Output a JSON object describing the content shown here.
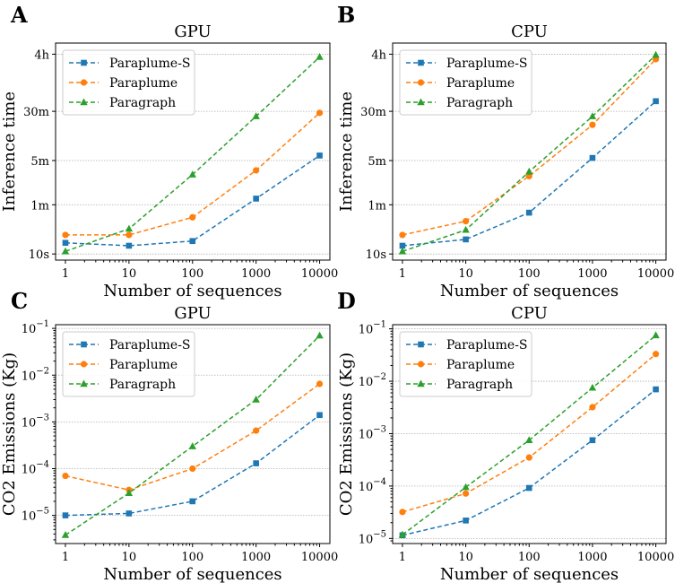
{
  "chart_data": [
    {
      "id": "A",
      "panel_label": "A",
      "type": "line",
      "title": "GPU",
      "xlabel": "Number of sequences",
      "ylabel": "Inference time",
      "xscale": "log",
      "yscale": "log",
      "x": [
        1,
        10,
        100,
        1000,
        10000
      ],
      "xticks": [
        {
          "value": 1,
          "label": "1"
        },
        {
          "value": 10,
          "label": "10"
        },
        {
          "value": 100,
          "label": "100"
        },
        {
          "value": 1000,
          "label": "1000"
        },
        {
          "value": 10000,
          "label": "10000"
        }
      ],
      "ylim": [
        8,
        21600
      ],
      "yticks": [
        {
          "value": 10,
          "label": "10s"
        },
        {
          "value": 60,
          "label": "1m"
        },
        {
          "value": 300,
          "label": "5m"
        },
        {
          "value": 1800,
          "label": "30m"
        },
        {
          "value": 14400,
          "label": "4h"
        }
      ],
      "grid": "horizontal",
      "legend_position": "top-left",
      "series": [
        {
          "name": "Paraplume-S",
          "color": "#1f77b4",
          "marker": "square",
          "values": [
            15,
            13.5,
            16,
            75,
            360
          ]
        },
        {
          "name": "Paraplume",
          "color": "#ff7f0e",
          "marker": "circle",
          "values": [
            20,
            20,
            38,
            210,
            1700
          ]
        },
        {
          "name": "Paragraph",
          "color": "#2ca02c",
          "marker": "triangle",
          "values": [
            11,
            25,
            180,
            1500,
            13000
          ]
        }
      ]
    },
    {
      "id": "B",
      "panel_label": "B",
      "type": "line",
      "title": "CPU",
      "xlabel": "Number of sequences",
      "ylabel": "Inference time",
      "xscale": "log",
      "yscale": "log",
      "x": [
        1,
        10,
        100,
        1000,
        10000
      ],
      "xticks": [
        {
          "value": 1,
          "label": "1"
        },
        {
          "value": 10,
          "label": "10"
        },
        {
          "value": 100,
          "label": "100"
        },
        {
          "value": 1000,
          "label": "1000"
        },
        {
          "value": 10000,
          "label": "10000"
        }
      ],
      "ylim": [
        8,
        21600
      ],
      "yticks": [
        {
          "value": 10,
          "label": "10s"
        },
        {
          "value": 60,
          "label": "1m"
        },
        {
          "value": 300,
          "label": "5m"
        },
        {
          "value": 1800,
          "label": "30m"
        },
        {
          "value": 14400,
          "label": "4h"
        }
      ],
      "grid": "horizontal",
      "legend_position": "top-left",
      "series": [
        {
          "name": "Paraplume-S",
          "color": "#1f77b4",
          "marker": "square",
          "values": [
            13.5,
            17,
            45,
            330,
            2600
          ]
        },
        {
          "name": "Paraplume",
          "color": "#ff7f0e",
          "marker": "circle",
          "values": [
            20,
            33,
            170,
            1100,
            12000
          ]
        },
        {
          "name": "Paragraph",
          "color": "#2ca02c",
          "marker": "triangle",
          "values": [
            11,
            24,
            200,
            1500,
            14000
          ]
        }
      ]
    },
    {
      "id": "C",
      "panel_label": "C",
      "type": "line",
      "title": "GPU",
      "xlabel": "Number of sequences",
      "ylabel": "CO2 Emissions (Kg)",
      "xscale": "log",
      "yscale": "log",
      "x": [
        1,
        10,
        100,
        1000,
        10000
      ],
      "xticks": [
        {
          "value": 1,
          "label": "1"
        },
        {
          "value": 10,
          "label": "10"
        },
        {
          "value": 100,
          "label": "100"
        },
        {
          "value": 1000,
          "label": "1000"
        },
        {
          "value": 10000,
          "label": "10000"
        }
      ],
      "ylim": [
        2.5e-06,
        0.12
      ],
      "yticks": [
        {
          "value": 1e-05,
          "label": "10",
          "exp": "−5"
        },
        {
          "value": 0.0001,
          "label": "10",
          "exp": "−4"
        },
        {
          "value": 0.001,
          "label": "10",
          "exp": "−3"
        },
        {
          "value": 0.01,
          "label": "10",
          "exp": "−2"
        },
        {
          "value": 0.1,
          "label": "10",
          "exp": "−1"
        }
      ],
      "grid": "horizontal",
      "legend_position": "top-left",
      "series": [
        {
          "name": "Paraplume-S",
          "color": "#1f77b4",
          "marker": "square",
          "values": [
            1e-05,
            1.1e-05,
            2e-05,
            0.00013,
            0.0014
          ]
        },
        {
          "name": "Paraplume",
          "color": "#ff7f0e",
          "marker": "circle",
          "values": [
            7e-05,
            3.5e-05,
            0.0001,
            0.00065,
            0.0065
          ]
        },
        {
          "name": "Paragraph",
          "color": "#2ca02c",
          "marker": "triangle",
          "values": [
            3.8e-06,
            3e-05,
            0.0003,
            0.003,
            0.07
          ]
        }
      ]
    },
    {
      "id": "D",
      "panel_label": "D",
      "type": "line",
      "title": "CPU",
      "xlabel": "Number of sequences",
      "ylabel": "CO2 Emissions (Kg)",
      "xscale": "log",
      "yscale": "log",
      "x": [
        1,
        10,
        100,
        1000,
        10000
      ],
      "xticks": [
        {
          "value": 1,
          "label": "1"
        },
        {
          "value": 10,
          "label": "10"
        },
        {
          "value": 100,
          "label": "100"
        },
        {
          "value": 1000,
          "label": "1000"
        },
        {
          "value": 10000,
          "label": "10000"
        }
      ],
      "ylim": [
        8e-06,
        0.12
      ],
      "yticks": [
        {
          "value": 1e-05,
          "label": "10",
          "exp": "−5"
        },
        {
          "value": 0.0001,
          "label": "10",
          "exp": "−4"
        },
        {
          "value": 0.001,
          "label": "10",
          "exp": "−3"
        },
        {
          "value": 0.01,
          "label": "10",
          "exp": "−2"
        },
        {
          "value": 0.1,
          "label": "10",
          "exp": "−1"
        }
      ],
      "grid": "horizontal",
      "legend_position": "top-left",
      "series": [
        {
          "name": "Paraplume-S",
          "color": "#1f77b4",
          "marker": "square",
          "values": [
            1.15e-05,
            2.2e-05,
            9.2e-05,
            0.00075,
            0.007
          ]
        },
        {
          "name": "Paraplume",
          "color": "#ff7f0e",
          "marker": "circle",
          "values": [
            3.2e-05,
            7.2e-05,
            0.00035,
            0.0032,
            0.033
          ]
        },
        {
          "name": "Paragraph",
          "color": "#2ca02c",
          "marker": "triangle",
          "values": [
            1.18e-05,
            9.5e-05,
            0.00075,
            0.0075,
            0.075
          ]
        }
      ]
    }
  ]
}
